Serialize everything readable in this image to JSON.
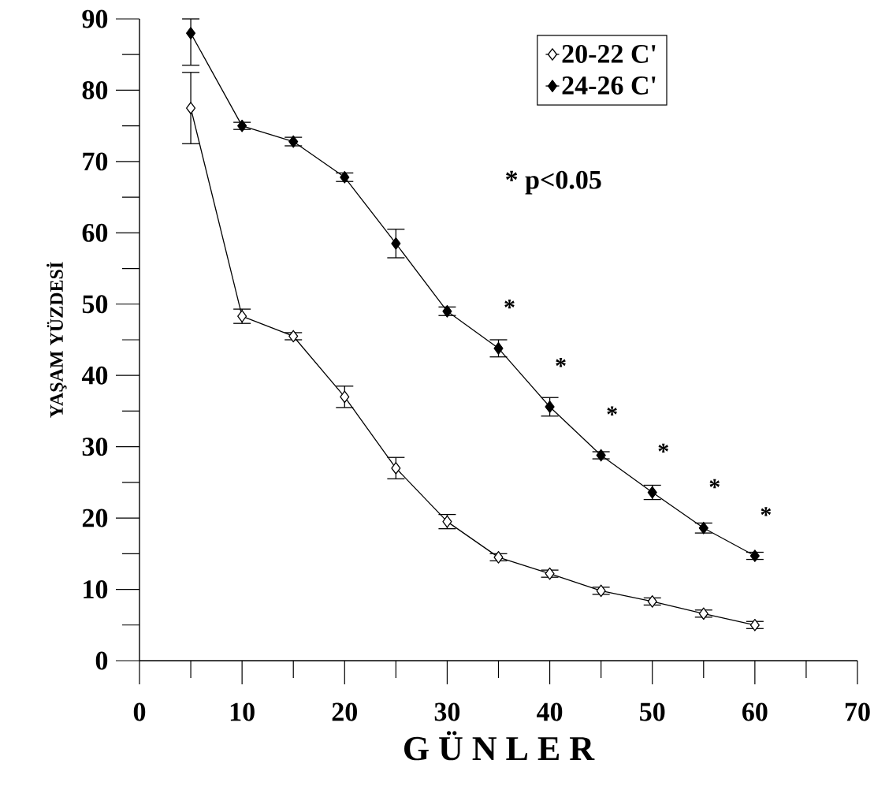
{
  "chart_data": {
    "type": "line",
    "xlabel": "G Ü N L E R",
    "ylabel": "YAŞAM YÜZDESİ",
    "x": [
      5,
      10,
      15,
      20,
      25,
      30,
      35,
      40,
      45,
      50,
      55,
      60
    ],
    "series": [
      {
        "name": "20-22  C'",
        "color": "#000000",
        "values": [
          77.5,
          48.3,
          45.5,
          37,
          27,
          19.5,
          14.5,
          12.2,
          9.8,
          8.3,
          6.6,
          5
        ],
        "errors": [
          5,
          1,
          0.5,
          1.5,
          1.5,
          1,
          0.5,
          0.5,
          0.5,
          0.5,
          0.5,
          0.5
        ]
      },
      {
        "name": "24-26  C'",
        "color": "#000000",
        "values": [
          88,
          75,
          72.8,
          67.8,
          58.5,
          49,
          43.8,
          35.6,
          28.8,
          23.6,
          18.6,
          14.7
        ],
        "errors": [
          [
            83.5,
            90
          ],
          0.5,
          0.6,
          0.6,
          2,
          0.6,
          1.2,
          1.3,
          0.5,
          1,
          0.7,
          0.5
        ]
      }
    ],
    "xlim": [
      0,
      70
    ],
    "ylim": [
      0,
      90
    ],
    "xticks": [
      0,
      10,
      20,
      30,
      40,
      50,
      60,
      70
    ],
    "yticks": [
      0,
      10,
      20,
      30,
      40,
      50,
      60,
      70,
      80,
      90
    ],
    "marker": "diamond",
    "line_style": "solid",
    "legend": "top right",
    "grid": false,
    "annotations": [
      "*  p<0.05",
      {
        "text": "*",
        "x": 35,
        "y": 43.8
      },
      {
        "text": "*",
        "x": 40,
        "y": 35.6
      },
      {
        "text": "*",
        "x": 45,
        "y": 28.8
      },
      {
        "text": "*",
        "x": 50,
        "y": 23.6
      },
      {
        "text": "*",
        "x": 55,
        "y": 18.6
      },
      {
        "text": "*",
        "x": 60,
        "y": 14.7
      }
    ]
  }
}
